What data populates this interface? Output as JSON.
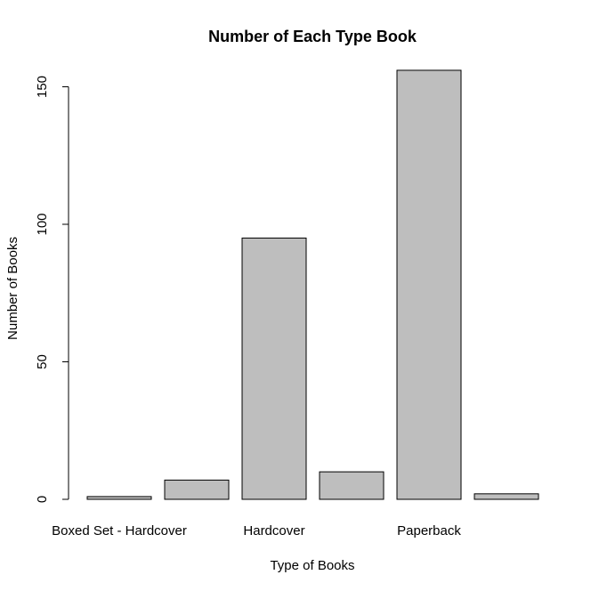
{
  "chart_data": {
    "type": "bar",
    "title": "Number of Each Type Book",
    "xlabel": "Type of Books",
    "ylabel": "Number of Books",
    "bars": [
      {
        "label": "Boxed Set - Hardcover",
        "value": 1
      },
      {
        "label": "",
        "value": 7
      },
      {
        "label": "Hardcover",
        "value": 95
      },
      {
        "label": "",
        "value": 10
      },
      {
        "label": "Paperback",
        "value": 156
      },
      {
        "label": "",
        "value": 2
      }
    ],
    "yticks": [
      0,
      50,
      100,
      150
    ],
    "ylim": [
      0,
      156
    ],
    "grid": false,
    "bar_color": "#bebebe",
    "border_color": "#000000"
  }
}
